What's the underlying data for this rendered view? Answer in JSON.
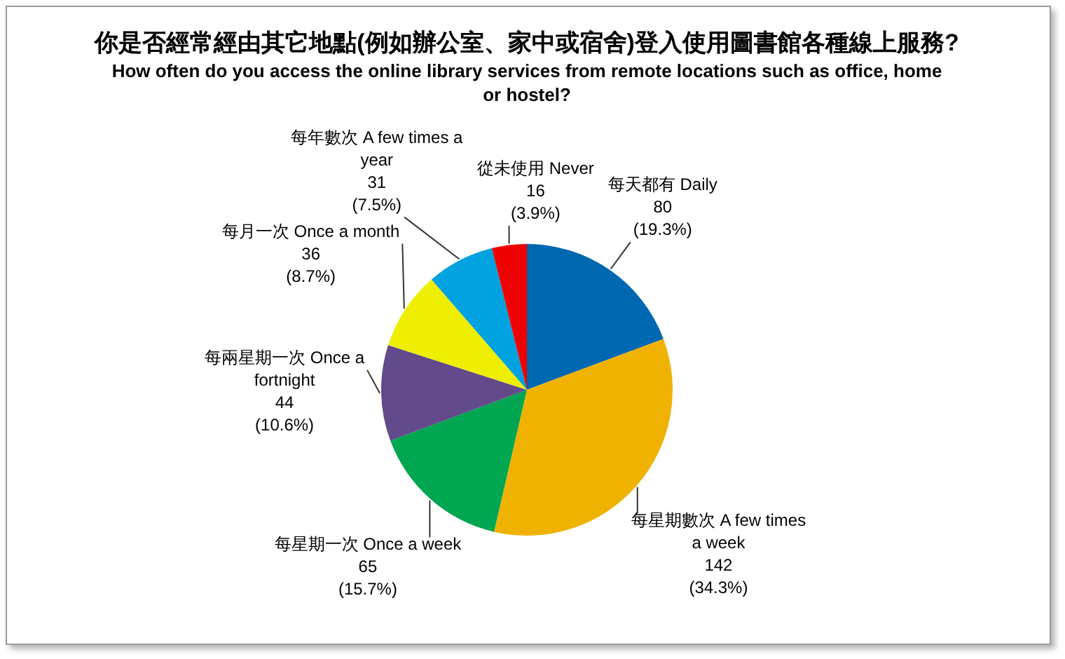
{
  "chart_data": {
    "type": "pie",
    "title": "你是否經常經由其它地點(例如辦公室、家中或宿舍)登入使用圖書館各種線上服務?",
    "subtitle": "How often do you access the online library services from remote locations such as office, home or hostel?",
    "categories": [
      "每天都有 Daily",
      "每星期數次 A few times a week",
      "每星期一次 Once a week",
      "每兩星期一次 Once a fortnight",
      "每月一次 Once a month",
      "每年數次 A few times a year",
      "從未使用 Never"
    ],
    "values": [
      80,
      142,
      65,
      44,
      36,
      31,
      16
    ],
    "value_labels": [
      "80 (19.3%)",
      "142 (34.3%)",
      "65 (15.7%)",
      "44 (10.6%)",
      "36 (8.7%)",
      "31 (7.5%)",
      "16 (3.9%)"
    ],
    "colors": [
      "#0067b1",
      "#efb200",
      "#00a650",
      "#624a8b",
      "#eeee00",
      "#00a2e0",
      "#ee0000"
    ]
  }
}
